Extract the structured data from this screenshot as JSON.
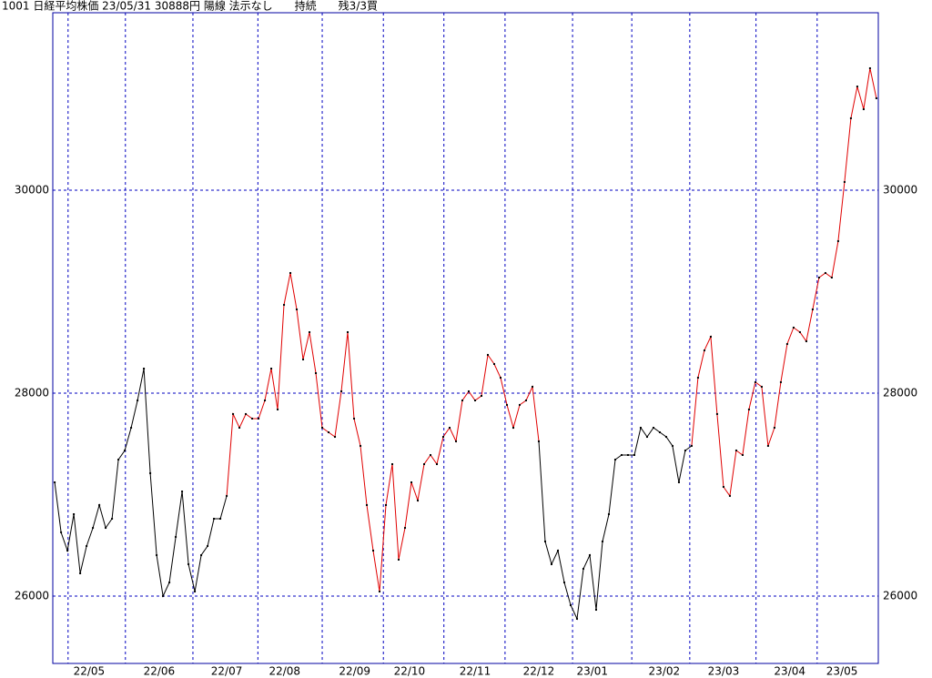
{
  "chart_data": {
    "type": "line",
    "title": "1001 日経平均株価 23/05/31 30888円 陽線 法示なし　　持続　　残3/3買",
    "xlim": [
      -0.3,
      129.3
    ],
    "ylim": [
      25336,
      31749
    ],
    "yticks": [
      26000,
      28000,
      30000
    ],
    "grid": true,
    "frame_color": "#0000a0",
    "grid_color": "#0000c0",
    "dot_color": "#000000",
    "month_lines": [
      2.1,
      11.1,
      21.7,
      31.9,
      42,
      51.6,
      61.1,
      70.7,
      81.3,
      90.6,
      99.7,
      110.1,
      119.7
    ],
    "month_labels": [
      {
        "value": 5.4,
        "label": "22/05"
      },
      {
        "value": 16.4,
        "label": "22/06"
      },
      {
        "value": 27,
        "label": "22/07"
      },
      {
        "value": 36.1,
        "label": "22/08"
      },
      {
        "value": 47.1,
        "label": "22/09"
      },
      {
        "value": 55.7,
        "label": "22/10"
      },
      {
        "value": 66,
        "label": "22/11"
      },
      {
        "value": 76,
        "label": "22/12"
      },
      {
        "value": 84.4,
        "label": "23/01"
      },
      {
        "value": 95.7,
        "label": "23/02"
      },
      {
        "value": 105,
        "label": "23/03"
      },
      {
        "value": 115.4,
        "label": "23/04"
      },
      {
        "value": 123.6,
        "label": "23/05"
      }
    ],
    "values": [
      27121,
      26628,
      26448,
      26807,
      26224,
      26493,
      26672,
      26897,
      26672,
      26762,
      27345,
      27435,
      27659,
      27928,
      28242,
      27211,
      26403,
      26000,
      26134,
      26583,
      27031,
      26314,
      26045,
      26403,
      26493,
      26762,
      26762,
      26987,
      27794,
      27659,
      27794,
      27749,
      27749,
      27928,
      28242,
      27839,
      28870,
      29184,
      28825,
      28332,
      28601,
      28197,
      27659,
      27614,
      27569,
      28018,
      28601,
      27749,
      27480,
      26897,
      26448,
      26045,
      26897,
      27300,
      26359,
      26672,
      27121,
      26942,
      27300,
      27390,
      27300,
      27569,
      27659,
      27525,
      27928,
      28018,
      27928,
      27973,
      28377,
      28287,
      28152,
      27884,
      27659,
      27884,
      27928,
      28063,
      27525,
      26538,
      26314,
      26448,
      26134,
      25910,
      25776,
      26269,
      26403,
      25865,
      26538,
      26807,
      27345,
      27390,
      27390,
      27390,
      27659,
      27569,
      27659,
      27614,
      27569,
      27480,
      27121,
      27435,
      27480,
      28152,
      28421,
      28556,
      27794,
      27076,
      26987,
      27435,
      27390,
      27839,
      28108,
      28063,
      27480,
      27659,
      28108,
      28484,
      28646,
      28601,
      28511,
      28825,
      29139,
      29184,
      29139,
      29498,
      30081,
      30709,
      31022,
      30798,
      31202,
      30906
    ],
    "trend_segments": [
      {
        "from": 0,
        "to": 27,
        "color": "#000000"
      },
      {
        "from": 27,
        "to": 76,
        "color": "#e00000"
      },
      {
        "from": 76,
        "to": 100,
        "color": "#000000"
      },
      {
        "from": 100,
        "to": 129,
        "color": "#e00000"
      }
    ]
  }
}
